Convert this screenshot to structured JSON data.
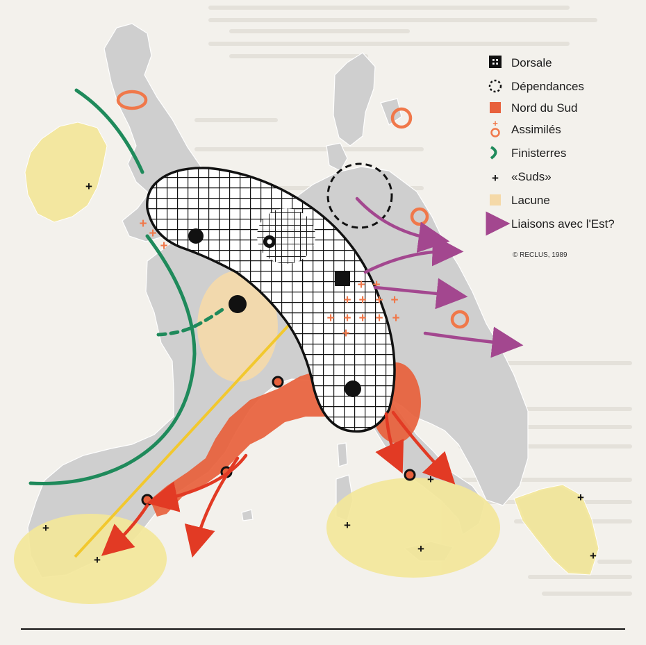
{
  "legend": {
    "items": [
      {
        "key": "dorsale",
        "label": "Dorsale",
        "icon": "dorsale-square-icon"
      },
      {
        "key": "dependances",
        "label": "Dépendances",
        "icon": "dashed-circle-icon"
      },
      {
        "key": "nord_du_sud",
        "label": "Nord du Sud",
        "icon": "orange-square-icon"
      },
      {
        "key": "assimiles",
        "label": "Assimilés",
        "icon": "cross-and-ring-icon"
      },
      {
        "key": "finisterres",
        "label": "Finisterres",
        "icon": "green-arc-icon"
      },
      {
        "key": "suds",
        "label": "«Suds»",
        "icon": "black-cross-icon"
      },
      {
        "key": "lacune",
        "label": "Lacune",
        "icon": "beige-square-icon"
      },
      {
        "key": "liaisons",
        "label": "Liaisons avec l'Est?",
        "icon": "purple-arrow-icon"
      }
    ],
    "credit": "© RECLUS, 1989"
  },
  "colors": {
    "land": "#cfcfcf",
    "land_border": "#ffffff",
    "dorsale": "#111111",
    "nord_du_sud": "#e8613c",
    "assimiles": "#f0784a",
    "finisterres": "#1f8a5b",
    "suds": "#f3e79a",
    "lacune": "#f5d9a8",
    "liaisons": "#a3478f",
    "southern_arrow": "#e23a24",
    "sun_line": "#f2c82e"
  }
}
